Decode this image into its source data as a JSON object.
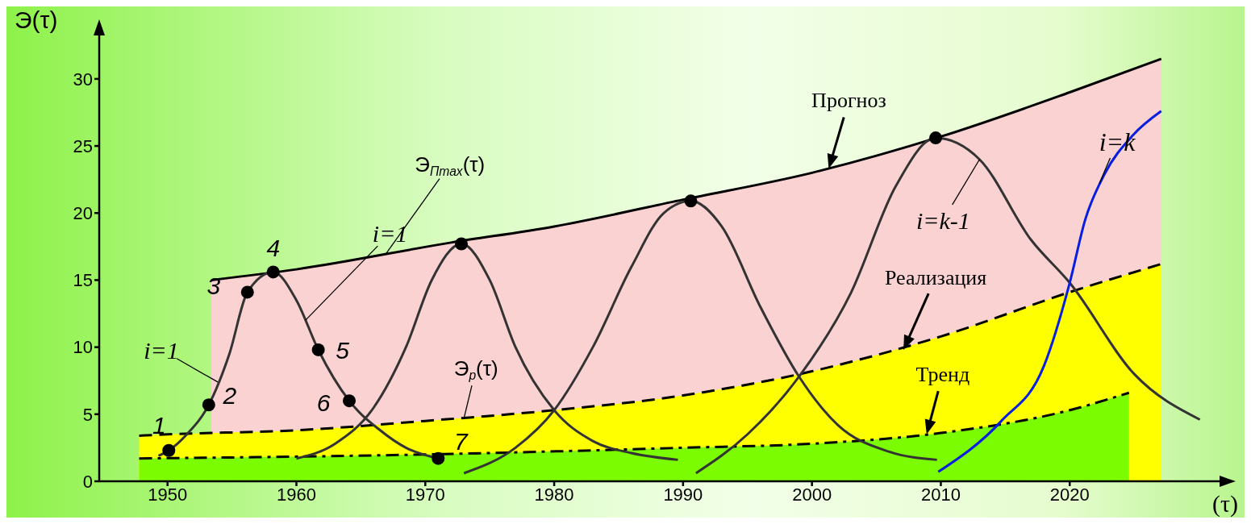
{
  "chart_data": {
    "type": "line",
    "xlabel": "(τ)",
    "ylabel": "Э(τ)",
    "xlim": [
      1944.7,
      2032
    ],
    "xticks": [
      1950,
      1960,
      1970,
      1980,
      1990,
      2000,
      2010,
      2020
    ],
    "ylim": [
      0,
      33.6
    ],
    "yticks": [
      0,
      5,
      10,
      15,
      20,
      25,
      30
    ],
    "grid": false,
    "legend": false,
    "series": [
      {
        "type": "area",
        "color": "#fad2d2",
        "line_style": "solid",
        "x": [
          1953.4,
          1960,
          1972,
          1980,
          1990,
          2000,
          2010,
          2020,
          2027.1
        ],
        "values": [
          15,
          15.8,
          17.8,
          19,
          21,
          23,
          25.7,
          29,
          31.5
        ]
      },
      {
        "type": "area",
        "color": "#ffff00",
        "line_style": "dashed",
        "x": [
          1947.8,
          1950,
          1960,
          1970,
          1980,
          1990,
          2000,
          2010,
          2020,
          2027.1
        ],
        "values": [
          3.4,
          3.5,
          3.8,
          4.5,
          5.3,
          6.4,
          8.2,
          10.8,
          14.1,
          16.2
        ]
      },
      {
        "type": "area",
        "color": "#7cfc00",
        "line_style": "dashdot",
        "x": [
          1947.8,
          1970,
          1990,
          2000,
          2010,
          2020,
          2024.6
        ],
        "values": [
          1.7,
          2.0,
          2.5,
          2.8,
          3.6,
          5.3,
          6.6
        ]
      },
      {
        "color": "#333333",
        "line_style": "solid",
        "x": [
          1949.3,
          1950.1,
          1951.5,
          1953.2,
          1954.8,
          1956.2,
          1958.2,
          1960,
          1961.7,
          1964.1,
          1966.5,
          1968.5,
          1971.0
        ],
        "values": [
          1.9,
          2.3,
          3.5,
          5.7,
          9.5,
          14.1,
          15.6,
          13.5,
          9.8,
          6.0,
          3.8,
          2.5,
          1.7
        ]
      },
      {
        "color": "#333333",
        "line_style": "solid",
        "x": [
          1960,
          1963,
          1966,
          1968.5,
          1970.5,
          1972.8,
          1975,
          1977,
          1980,
          1983,
          1986,
          1989.6
        ],
        "values": [
          1.7,
          2.8,
          5.5,
          10,
          15,
          17.7,
          15,
          10,
          5.3,
          3,
          2.1,
          1.6
        ]
      },
      {
        "color": "#333333",
        "line_style": "solid",
        "x": [
          1973,
          1977,
          1980,
          1983,
          1986,
          1988.5,
          1990.6,
          1993,
          1996,
          1999,
          2002,
          2006,
          2009.7
        ],
        "values": [
          0.6,
          2.5,
          5.3,
          10,
          16,
          20,
          20.9,
          19,
          13,
          7.8,
          4.2,
          2.2,
          1.6
        ]
      },
      {
        "color": "#333333",
        "line_style": "solid",
        "x": [
          1991,
          1995,
          1999,
          2003,
          2006.5,
          2009.6,
          2013,
          2017,
          2020,
          2025,
          2030.1
        ],
        "values": [
          0.6,
          3.5,
          7.8,
          14,
          22,
          25.6,
          24,
          18,
          14.8,
          8,
          4.6
        ]
      },
      {
        "color": "#0a1ee0",
        "line_style": "solid",
        "x": [
          2009.8,
          2014.7,
          2018,
          2020,
          2021.2,
          2022.7,
          2024.9,
          2027.1
        ],
        "values": [
          0.7,
          4.5,
          8.6,
          14.8,
          19.5,
          22.9,
          25.8,
          27.6
        ]
      },
      {
        "type": "scatter",
        "color": "#000000",
        "marker": "circle",
        "x": [
          1950.1,
          1953.2,
          1956.2,
          1958.2,
          1961.7,
          1964.1,
          1971.0,
          1972.8,
          1990.6,
          2009.6
        ],
        "values": [
          2.3,
          5.7,
          14.1,
          15.6,
          9.8,
          6.0,
          1.7,
          17.7,
          20.9,
          25.6
        ]
      }
    ],
    "annotations": [
      {
        "text": "Прогноз",
        "x": 2001.3,
        "y": 23.3
      },
      {
        "text": "Реализация",
        "x": 2007.1,
        "y": 9.8
      },
      {
        "text": "Тренд",
        "x": 2008.9,
        "y": 3.5
      },
      {
        "text": "Э$_{Пmax}$(τ)",
        "x": 1966.9,
        "y": 16.9
      },
      {
        "text": "Э$_{р}$(τ)",
        "x": 1973,
        "y": 4.7
      },
      {
        "text": "i=1",
        "x": 1960.7,
        "y": 12.0
      },
      {
        "text": "i=1",
        "x": 1953.9,
        "y": 7.4
      },
      {
        "text": "i=k-1",
        "x": 2013,
        "y": 24
      },
      {
        "text": "i=k",
        "x": 2022.3,
        "y": 22.2
      },
      {
        "text": "1",
        "x": 1950.1,
        "y": 2.3
      },
      {
        "text": "2",
        "x": 1953.2,
        "y": 5.7
      },
      {
        "text": "3",
        "x": 1956.2,
        "y": 14.1
      },
      {
        "text": "4",
        "x": 1958.2,
        "y": 15.6
      },
      {
        "text": "5",
        "x": 1961.7,
        "y": 9.8
      },
      {
        "text": "6",
        "x": 1964.1,
        "y": 6.0
      },
      {
        "text": "7",
        "x": 1971.0,
        "y": 1.7
      }
    ]
  }
}
